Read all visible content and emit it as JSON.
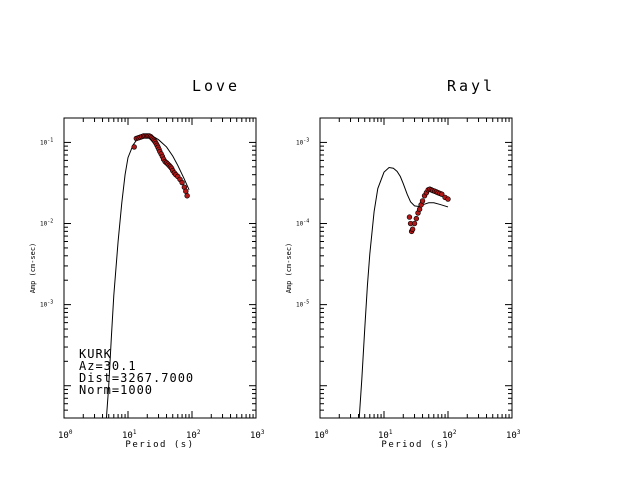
{
  "chart_data": [
    {
      "type": "line",
      "title": "Love",
      "xlabel": "Period (s)",
      "ylabel": "Amp (cm-sec)",
      "x_scale": "log",
      "y_scale": "log",
      "xlim": [
        1,
        1000
      ],
      "ylim": [
        4e-05,
        0.2
      ],
      "x_tick_labels": [
        {
          "base": "10",
          "exp": "0",
          "value": 1
        },
        {
          "base": "10",
          "exp": "1",
          "value": 10
        },
        {
          "base": "10",
          "exp": "2",
          "value": 100
        },
        {
          "base": "10",
          "exp": "3",
          "value": 1000
        }
      ],
      "y_tick_labels": [
        {
          "base": "10",
          "exp": "-1",
          "value": 0.1
        },
        {
          "base": "10",
          "exp": "-2",
          "value": 0.01
        },
        {
          "base": "10",
          "exp": "-3",
          "value": 0.001
        }
      ],
      "annotations": [
        "KURK",
        "Az=30.1",
        "Dist=3267.7000",
        "Norm=1000"
      ],
      "series": [
        {
          "kind": "line",
          "color": "#000000",
          "x": [
            4.6,
            5.0,
            5.5,
            6.0,
            7.0,
            8.0,
            9.0,
            10.0,
            12.0,
            14.0,
            17.0,
            20.0,
            24.0,
            30.0,
            40.0,
            50.0,
            60.0,
            75.0,
            90.0
          ],
          "y": [
            4e-05,
            0.0001,
            0.0004,
            0.0013,
            0.006,
            0.018,
            0.04,
            0.065,
            0.093,
            0.11,
            0.12,
            0.125,
            0.12,
            0.108,
            0.088,
            0.068,
            0.052,
            0.036,
            0.026
          ]
        },
        {
          "kind": "points",
          "color": "#b01818",
          "x": [
            12.5,
            13.5,
            14.5,
            15.5,
            16.5,
            17.5,
            18.5,
            19.5,
            20.5,
            21.5,
            22.5,
            23.5,
            24.5,
            25.5,
            26.5,
            27.5,
            28.5,
            29.5,
            30.5,
            31.5,
            33.0,
            34.5,
            36.0,
            38.0,
            40.0,
            42.0,
            44.0,
            46.0,
            48.0,
            50.0,
            53.0,
            56.0,
            60.0,
            65.0,
            70.0,
            76.0,
            80.0,
            84.0
          ],
          "y": [
            0.088,
            0.112,
            0.114,
            0.116,
            0.118,
            0.12,
            0.12,
            0.12,
            0.12,
            0.12,
            0.118,
            0.114,
            0.11,
            0.106,
            0.102,
            0.097,
            0.092,
            0.087,
            0.082,
            0.077,
            0.072,
            0.067,
            0.062,
            0.058,
            0.056,
            0.054,
            0.052,
            0.05,
            0.048,
            0.045,
            0.042,
            0.04,
            0.038,
            0.035,
            0.032,
            0.028,
            0.025,
            0.022
          ]
        }
      ]
    },
    {
      "type": "line",
      "title": "Rayl",
      "xlabel": "Period (s)",
      "ylabel": "Amp (cm-sec)",
      "x_scale": "log",
      "y_scale": "log",
      "xlim": [
        1,
        1000
      ],
      "ylim": [
        4e-07,
        0.002
      ],
      "x_tick_labels": [
        {
          "base": "10",
          "exp": "0",
          "value": 1
        },
        {
          "base": "10",
          "exp": "1",
          "value": 10
        },
        {
          "base": "10",
          "exp": "2",
          "value": 100
        },
        {
          "base": "10",
          "exp": "3",
          "value": 1000
        }
      ],
      "y_tick_labels": [
        {
          "base": "10",
          "exp": "-3",
          "value": 0.001
        },
        {
          "base": "10",
          "exp": "-4",
          "value": 0.0001
        },
        {
          "base": "10",
          "exp": "-5",
          "value": 1e-05
        }
      ],
      "annotations": [],
      "series": [
        {
          "kind": "line",
          "color": "#000000",
          "x": [
            4.1,
            4.5,
            5.0,
            5.5,
            6.0,
            7.0,
            8.0,
            10.0,
            12.0,
            14.0,
            16.0,
            18.0,
            20.0,
            23.0,
            26.0,
            30.0,
            35.0,
            40.0,
            50.0,
            60.0,
            75.0,
            100.0
          ],
          "y": [
            4e-07,
            1.2e-06,
            5e-06,
            1.7e-05,
            4.2e-05,
            0.00014,
            0.00027,
            0.00043,
            0.00049,
            0.00048,
            0.00044,
            0.00038,
            0.00031,
            0.00023,
            0.000185,
            0.000165,
            0.000162,
            0.00017,
            0.00018,
            0.00018,
            0.000172,
            0.00016
          ]
        },
        {
          "kind": "points",
          "color": "#b01818",
          "x": [
            25.0,
            26.0,
            27.0,
            28.0,
            30.0,
            32.0,
            34.0,
            36.0,
            38.0,
            40.0,
            43.0,
            46.0,
            49.0,
            52.0,
            55.0,
            58.0,
            62.0,
            66.0,
            70.0,
            75.0,
            80.0,
            90.0,
            100.0
          ],
          "y": [
            0.00012,
            0.0001,
            8e-05,
            8.5e-05,
            0.0001,
            0.000115,
            0.000135,
            0.00015,
            0.00017,
            0.00019,
            0.00022,
            0.00024,
            0.00026,
            0.000265,
            0.00026,
            0.000255,
            0.00025,
            0.000245,
            0.00024,
            0.000235,
            0.00023,
            0.00021,
            0.0002
          ]
        }
      ]
    }
  ]
}
